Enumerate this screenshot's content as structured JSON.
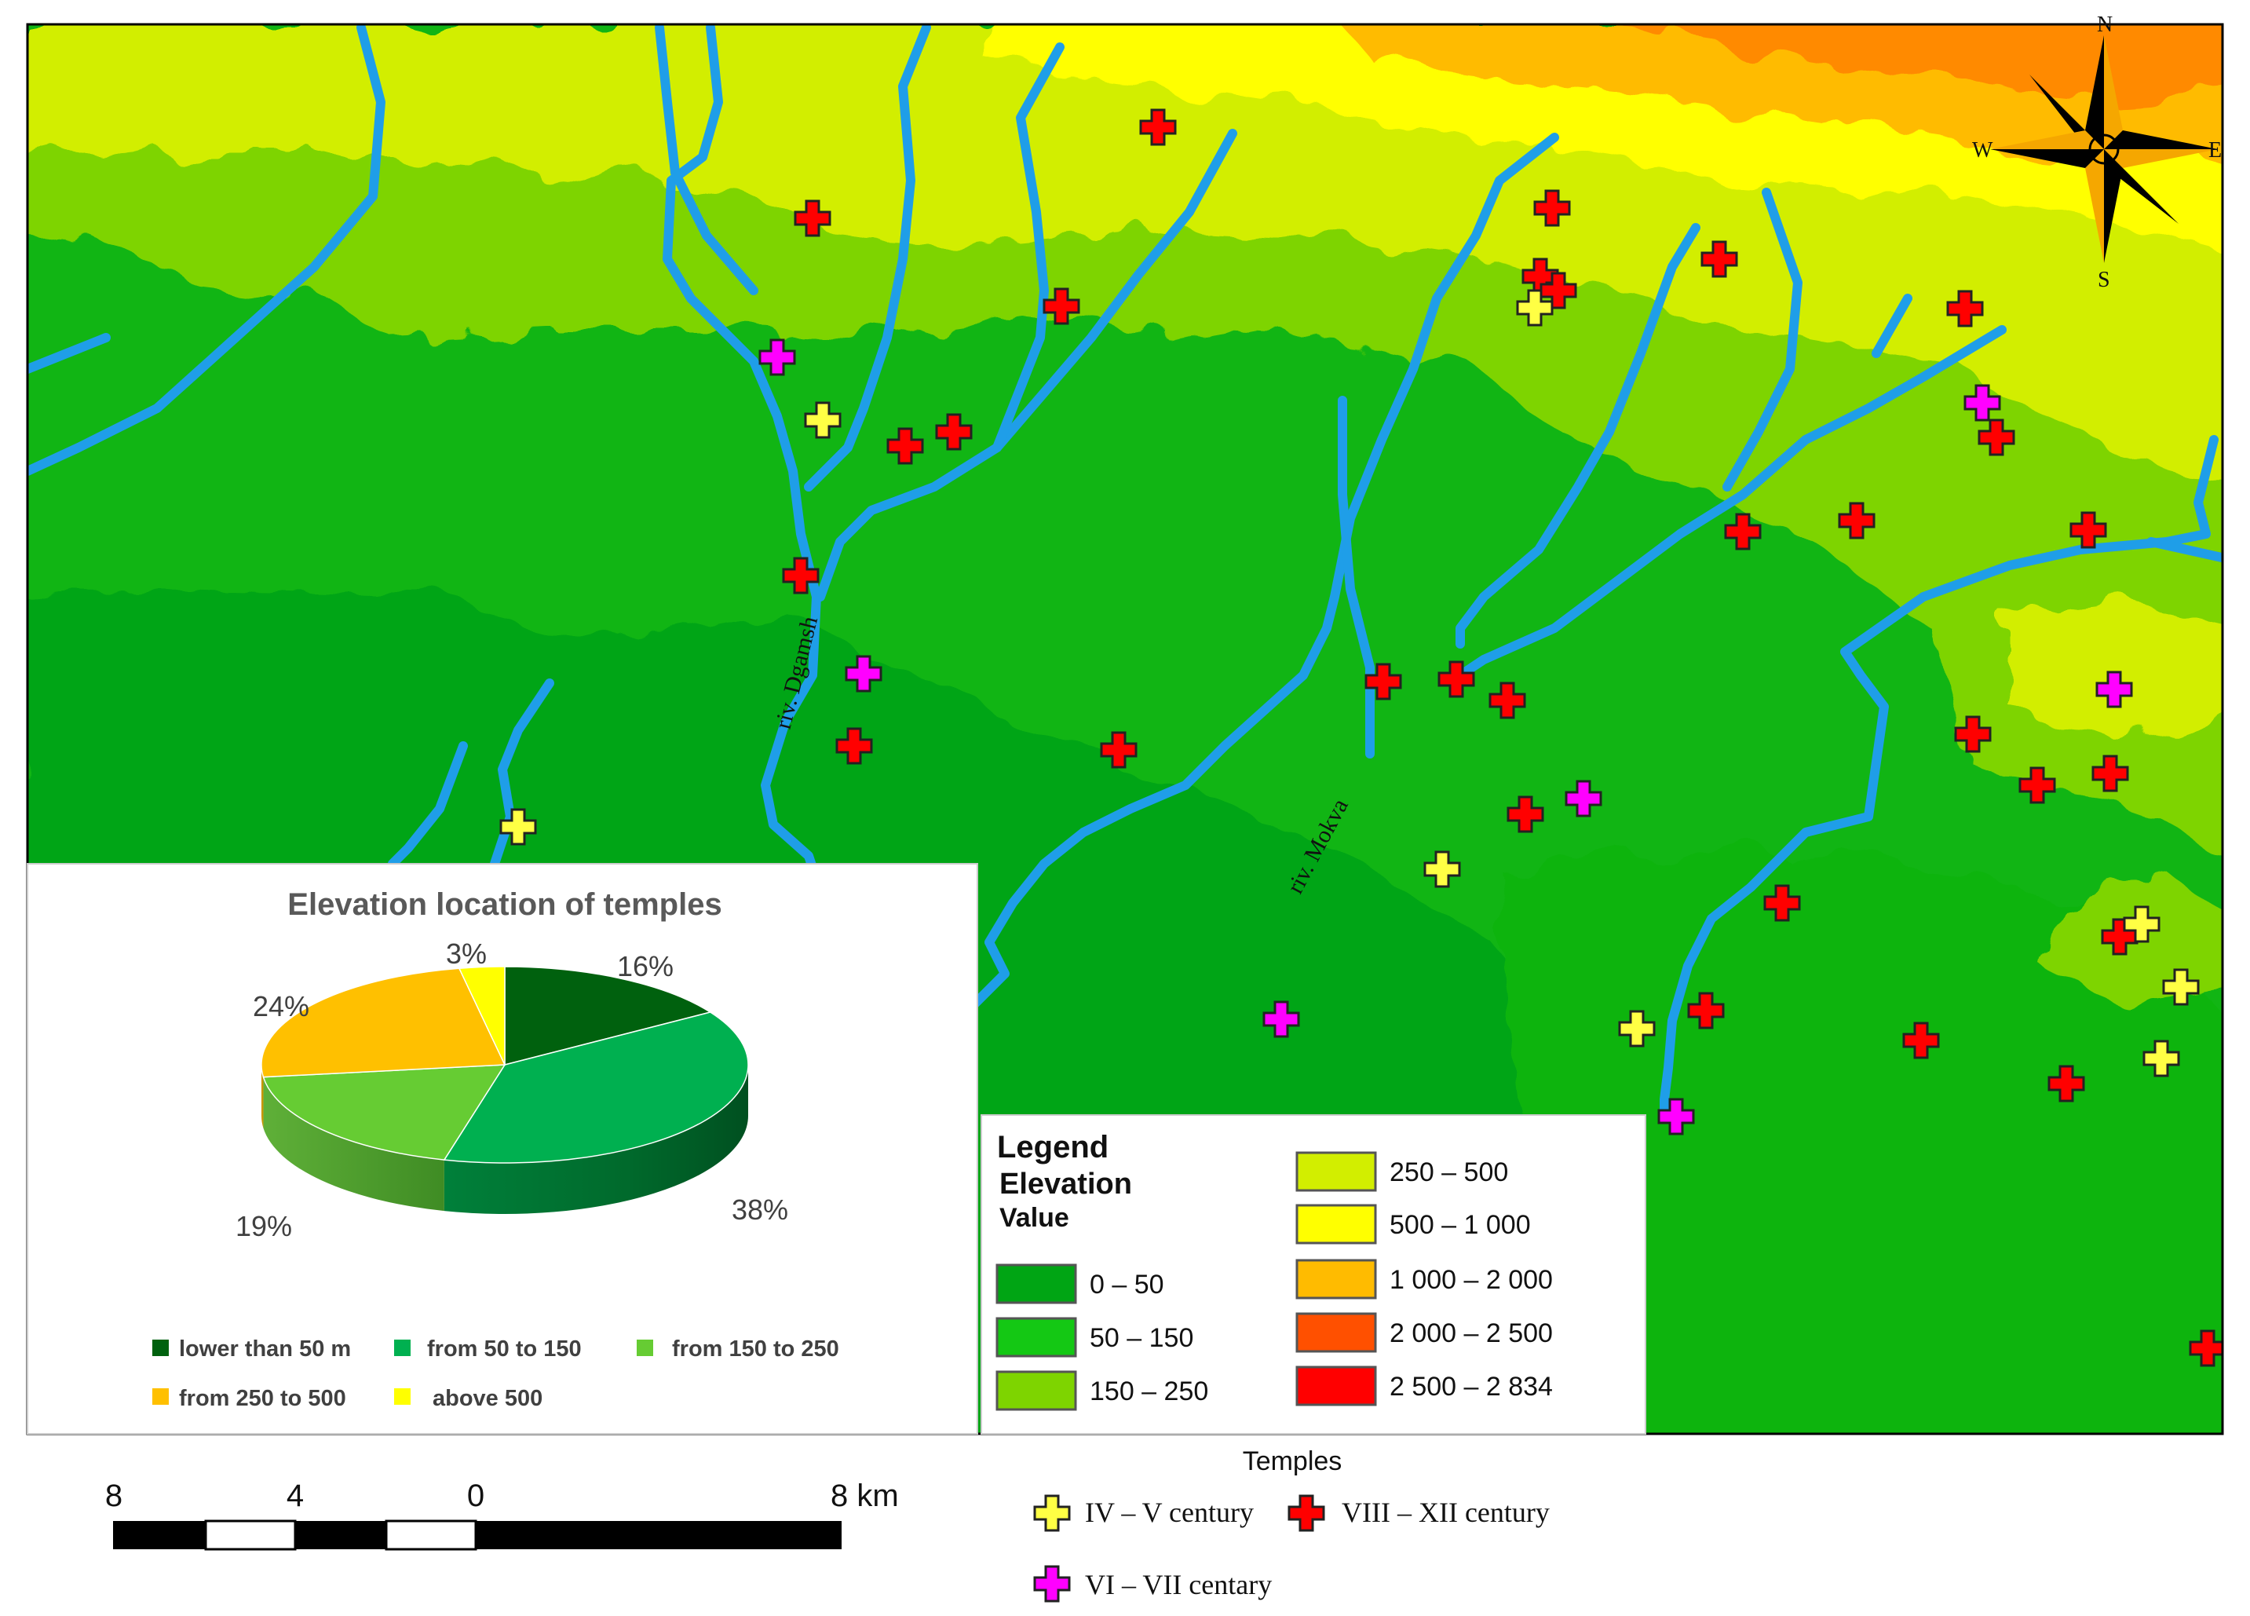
{
  "pie": {
    "title": "Elevation location of temples",
    "labels": [
      "16%",
      "38%",
      "19%",
      "24%",
      "3%"
    ],
    "legend": [
      "lower than 50 m",
      "from 50 to 150",
      "from 150 to 250",
      "from 250 to 500",
      "above 500"
    ]
  },
  "chart_data": {
    "type": "pie",
    "title": "Elevation location of temples",
    "categories": [
      "lower than 50 m",
      "from 50 to 150",
      "from 150 to 250",
      "from 250 to 500",
      "above 500"
    ],
    "values": [
      16,
      38,
      19,
      24,
      3
    ],
    "colors": [
      "#00610e",
      "#00b050",
      "#66cc33",
      "#ffc000",
      "#ffff00"
    ],
    "legend_position": "bottom"
  },
  "legend": {
    "title": "Legend",
    "subtitle": "Elevation",
    "value_label": "Value",
    "classes": [
      {
        "label": "0 – 50",
        "color": "#00a514"
      },
      {
        "label": "50 – 150",
        "color": "#14c814"
      },
      {
        "label": "150 – 250",
        "color": "#7ed400"
      },
      {
        "label": "250 – 500",
        "color": "#d2ee00"
      },
      {
        "label": "500 – 1 000",
        "color": "#ffff00"
      },
      {
        "label": "1 000 – 2 000",
        "color": "#ffbb00"
      },
      {
        "label": "2 000 – 2 500",
        "color": "#ff5000"
      },
      {
        "label": "2 500 – 2 834",
        "color": "#ff0000"
      }
    ]
  },
  "rivers": {
    "dgamsh": "riv. Dgamsh",
    "mokva": "riv. Mokva"
  },
  "compass": {
    "n": "N",
    "s": "S",
    "e": "E",
    "w": "W"
  },
  "scale": {
    "ticks": [
      "8",
      "4",
      "0",
      "8 km"
    ]
  },
  "temples": {
    "title": "Temples",
    "types": [
      {
        "label": "IV – V century",
        "color": "#ffff44"
      },
      {
        "label": "VIII – XII century",
        "color": "#ff0000"
      },
      {
        "label": "VI – VII centary",
        "color": "#ff00ff"
      }
    ]
  },
  "colors": {
    "river": "#1f9ee8",
    "map_border": "#000000"
  }
}
